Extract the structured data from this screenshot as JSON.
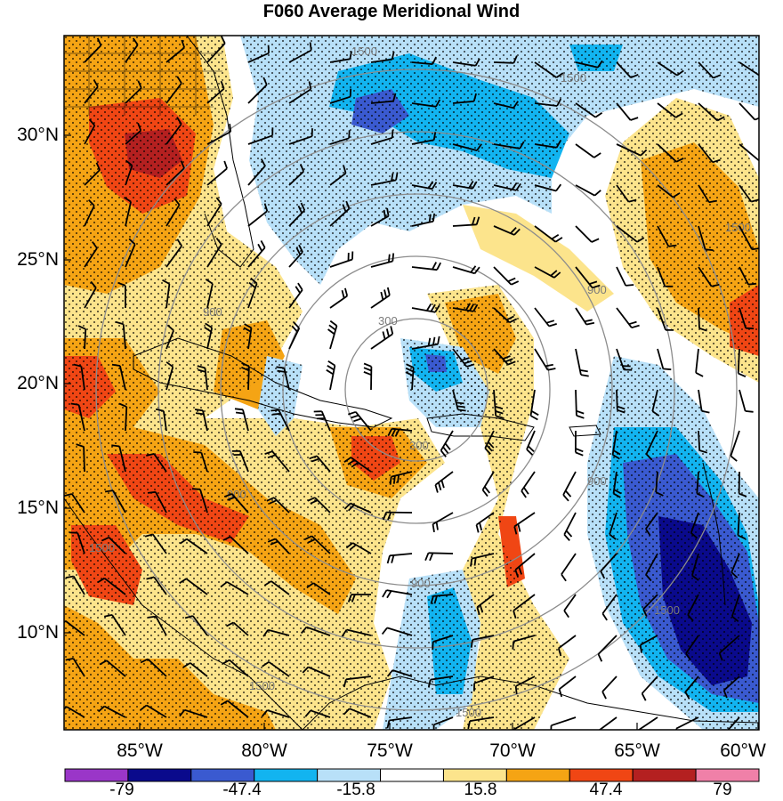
{
  "title": "F060 Average Meridional Wind",
  "lat_labels": [
    "30°N",
    "25°N",
    "20°N",
    "15°N",
    "10°N"
  ],
  "lon_labels": [
    "85°W",
    "80°W",
    "75°W",
    "70°W",
    "65°W",
    "60°W"
  ],
  "colorbar": {
    "labels": [
      "-79",
      "-47.4",
      "-15.8",
      "15.8",
      "47.4",
      "79"
    ],
    "colors": [
      "#9a36c8",
      "#0a0a8c",
      "#3a5ad0",
      "#12b4f0",
      "#b8e0f8",
      "#ffffff",
      "#fce48c",
      "#f5a414",
      "#f04614",
      "#b42020",
      "#f080a8"
    ]
  },
  "range_ring_labels": [
    "300",
    "900",
    "1500"
  ],
  "colors": {
    "strong_negative": "#0a0a8c",
    "negative": "#3a5ad0",
    "moderate_negative": "#12b4f0",
    "weak_negative": "#b8e0f8",
    "weak_positive": "#fce48c",
    "moderate_positive": "#f5a414",
    "positive": "#f04614",
    "strong_positive": "#b42020"
  }
}
